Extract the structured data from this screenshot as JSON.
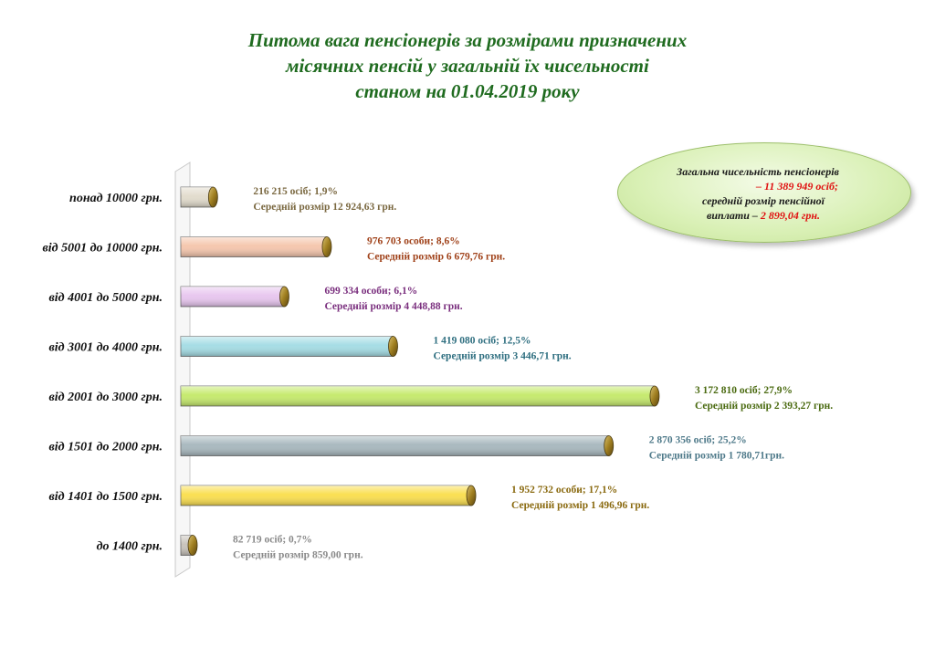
{
  "title_lines": [
    "Питома вага пенсіонерів за розмірами призначених",
    "місячних пенсій у загальній їх чисельності",
    "станом на 01.04.2019 року"
  ],
  "summary": {
    "line1": "Загальна чисельність пенсіонерів",
    "line2": "– 11 389 949 осіб;",
    "line3": "середній розмір пенсійної",
    "line4_prefix": "виплати – ",
    "line4_value": "2 899,04 грн."
  },
  "chart_data": {
    "type": "bar",
    "orientation": "horizontal",
    "unit": "%",
    "categories": [
      "понад 10000 грн.",
      "від 5001 до 10000 грн.",
      "від 4001 до 5000 грн.",
      "від 3001 до 4000 грн.",
      "від 2001 до 3000 грн.",
      "від 1501 до 2000 грн.",
      "від 1401 до 1500 грн.",
      "до 1400 грн."
    ],
    "values": [
      1.9,
      8.6,
      6.1,
      12.5,
      27.9,
      25.2,
      17.1,
      0.7
    ],
    "labels_line1": [
      "216 215 осіб;  1,9%",
      "976 703 особи;  8,6%",
      "699 334 особи;  6,1%",
      "1 419 080 осіб; 12,5%",
      "3 172 810 осіб; 27,9%",
      "2 870 356 осіб; 25,2%",
      "1 952 732 особи;  17,1%",
      "82 719 осіб;  0,7%"
    ],
    "labels_line2": [
      "Середній  розмір  12 924,63 грн.",
      "Середній  розмір  6 679,76 грн.",
      "Середній  розмір  4 448,88 грн.",
      "Середній  розмір  3 446,71 грн.",
      "Середній  розмір  2 393,27 грн.",
      "Середній  розмір  1 780,71грн.",
      "Середній  розмір  1 496,96 грн.",
      "Середній  розмір  859,00 грн."
    ],
    "colors": [
      "#e2dccd",
      "#f5c7ae",
      "#e8c7ef",
      "#a6dde5",
      "#c6ea6e",
      "#a9b9bf",
      "#fadf52",
      "#c9c4bc"
    ],
    "label_colors": [
      "#7a6840",
      "#a0421a",
      "#7a2f7e",
      "#2f6f80",
      "#4a6a10",
      "#4f7a8a",
      "#8a6a10",
      "#8a8a8a"
    ],
    "xlim": [
      0,
      30
    ],
    "legend": "none",
    "grid": false
  }
}
